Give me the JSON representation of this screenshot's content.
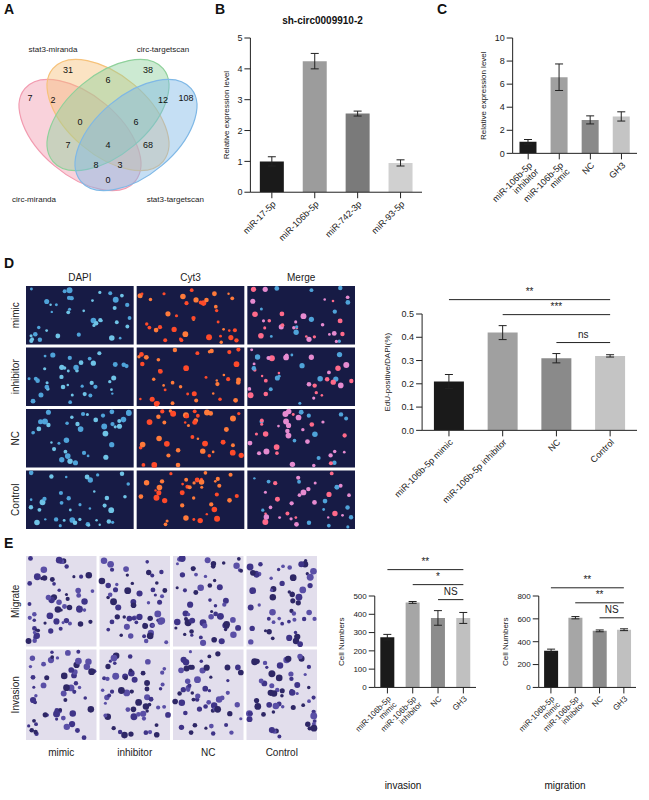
{
  "panel_labels": [
    "A",
    "B",
    "C",
    "D",
    "E"
  ],
  "chart_data": [
    {
      "type": "venn",
      "sets": [
        {
          "name": "circ-miranda",
          "color": "#f29bb0"
        },
        {
          "name": "stat3-miranda",
          "color": "#f6c27a"
        },
        {
          "name": "circ-targetscan",
          "color": "#8fd19b"
        },
        {
          "name": "stat3-targetscan",
          "color": "#7fb8e6"
        }
      ],
      "regions": [
        {
          "sets": [
            0
          ],
          "value": 7
        },
        {
          "sets": [
            1
          ],
          "value": 31
        },
        {
          "sets": [
            2
          ],
          "value": 38
        },
        {
          "sets": [
            3
          ],
          "value": 108
        },
        {
          "sets": [
            0,
            1
          ],
          "value": 2
        },
        {
          "sets": [
            1,
            2
          ],
          "value": 6
        },
        {
          "sets": [
            2,
            3
          ],
          "value": 12
        },
        {
          "sets": [
            0,
            3
          ],
          "value": 0
        },
        {
          "sets": [
            0,
            2
          ],
          "value": 7
        },
        {
          "sets": [
            1,
            3
          ],
          "value": 68
        },
        {
          "sets": [
            0,
            1,
            2
          ],
          "value": 0
        },
        {
          "sets": [
            1,
            2,
            3
          ],
          "value": 6
        },
        {
          "sets": [
            0,
            2,
            3
          ],
          "value": 8
        },
        {
          "sets": [
            0,
            1,
            3
          ],
          "value": 3
        },
        {
          "sets": [
            0,
            1,
            2,
            3
          ],
          "value": 4
        }
      ]
    },
    {
      "type": "bar",
      "title": "sh-circ0009910-2",
      "y_label": "Relative expression level",
      "categories": [
        "miR-17-5p",
        "miR-106b-5p",
        "miR-742-3p",
        "miR-93-5p"
      ],
      "values": [
        1.0,
        4.25,
        2.55,
        0.95
      ],
      "errors": [
        0.15,
        0.25,
        0.08,
        0.1
      ],
      "colors": [
        "#1a1a1a",
        "#9c9c9c",
        "#7a7a7a",
        "#d0d0d0"
      ],
      "ylim": [
        0,
        5
      ],
      "yticks": [
        0,
        1,
        2,
        3,
        4,
        5
      ]
    },
    {
      "type": "bar",
      "y_label": "Relative expression level",
      "categories": [
        "miR-106b-5p inhibitor",
        "miR-106b-5p mimic",
        "NC",
        "GH3"
      ],
      "values": [
        1.0,
        6.6,
        2.9,
        3.2
      ],
      "errors": [
        0.2,
        1.15,
        0.35,
        0.4
      ],
      "colors": [
        "#1a1a1a",
        "#a0a0a0",
        "#8a8a8a",
        "#c4c4c4"
      ],
      "ylim": [
        0,
        10
      ],
      "yticks": [
        0,
        2,
        4,
        6,
        8,
        10
      ]
    },
    {
      "type": "bar",
      "y_label": "EdU-positive/DAPI(%)",
      "categories": [
        "miR-106b-5p mimic",
        "miR-106b-5p inhibitor",
        "NC",
        "Control"
      ],
      "values": [
        0.21,
        0.42,
        0.31,
        0.32
      ],
      "errors": [
        0.03,
        0.03,
        0.02,
        0.005
      ],
      "colors": [
        "#1a1a1a",
        "#a0a0a0",
        "#8a8a8a",
        "#c4c4c4"
      ],
      "ylim": [
        0,
        0.5
      ],
      "yticks": [
        {
          "value": 0,
          "label": "0.0"
        },
        0.1,
        0.2,
        0.3,
        0.4,
        0.5
      ],
      "comparisons": [
        {
          "from": "NC",
          "to": "Control",
          "label": "ns"
        },
        {
          "from": "miR-106b-5p inhibitor",
          "to": "Control",
          "label": "***"
        },
        {
          "from": "miR-106b-5p mimic",
          "to": "Control",
          "label": "**"
        }
      ]
    },
    {
      "type": "bar",
      "x_label": "invasion",
      "y_label": "Cell Numbers",
      "categories": [
        "miR-106b-5p mimic",
        "miR-106b-5p inhibitor",
        "NC",
        "GH3"
      ],
      "values": [
        275,
        465,
        380,
        380
      ],
      "errors": [
        15,
        5,
        40,
        30
      ],
      "colors": [
        "#1a1a1a",
        "#a6a6a6",
        "#8c8c8c",
        "#c0c0c0"
      ],
      "ylim": [
        0,
        500
      ],
      "yticks": [
        0,
        100,
        200,
        300,
        400,
        500
      ],
      "comparisons": [
        {
          "from": "NC",
          "to": "GH3",
          "label": "NS"
        },
        {
          "from": "miR-106b-5p inhibitor",
          "to": "GH3",
          "label": "*"
        },
        {
          "from": "miR-106b-5p mimic",
          "to": "GH3",
          "label": "**"
        }
      ]
    },
    {
      "type": "bar",
      "x_label": "migration",
      "y_label": "Cell Numbers",
      "categories": [
        "miR-106b-5p mimic",
        "miR-106b-5p inhibitor",
        "NC",
        "GH3"
      ],
      "values": [
        320,
        610,
        495,
        505
      ],
      "errors": [
        15,
        10,
        8,
        8
      ],
      "colors": [
        "#1a1a1a",
        "#a6a6a6",
        "#8c8c8c",
        "#c0c0c0"
      ],
      "ylim": [
        0,
        800
      ],
      "yticks": [
        0,
        200,
        400,
        600,
        800
      ],
      "comparisons": [
        {
          "from": "NC",
          "to": "GH3",
          "label": "NS"
        },
        {
          "from": "miR-106b-5p inhibitor",
          "to": "GH3",
          "label": "**"
        },
        {
          "from": "miR-106b-5p mimic",
          "to": "GH3",
          "label": "**"
        }
      ]
    }
  ],
  "images": {
    "D": {
      "columns": [
        "DAPI",
        "Cyt3",
        "Merge"
      ],
      "rows": [
        "mimic",
        "inhibitor",
        "NC",
        "Control"
      ]
    },
    "E": {
      "rows": [
        "Migrate",
        "Invasion"
      ],
      "columns": [
        "mimic",
        "inhibitor",
        "NC",
        "Control"
      ]
    }
  }
}
